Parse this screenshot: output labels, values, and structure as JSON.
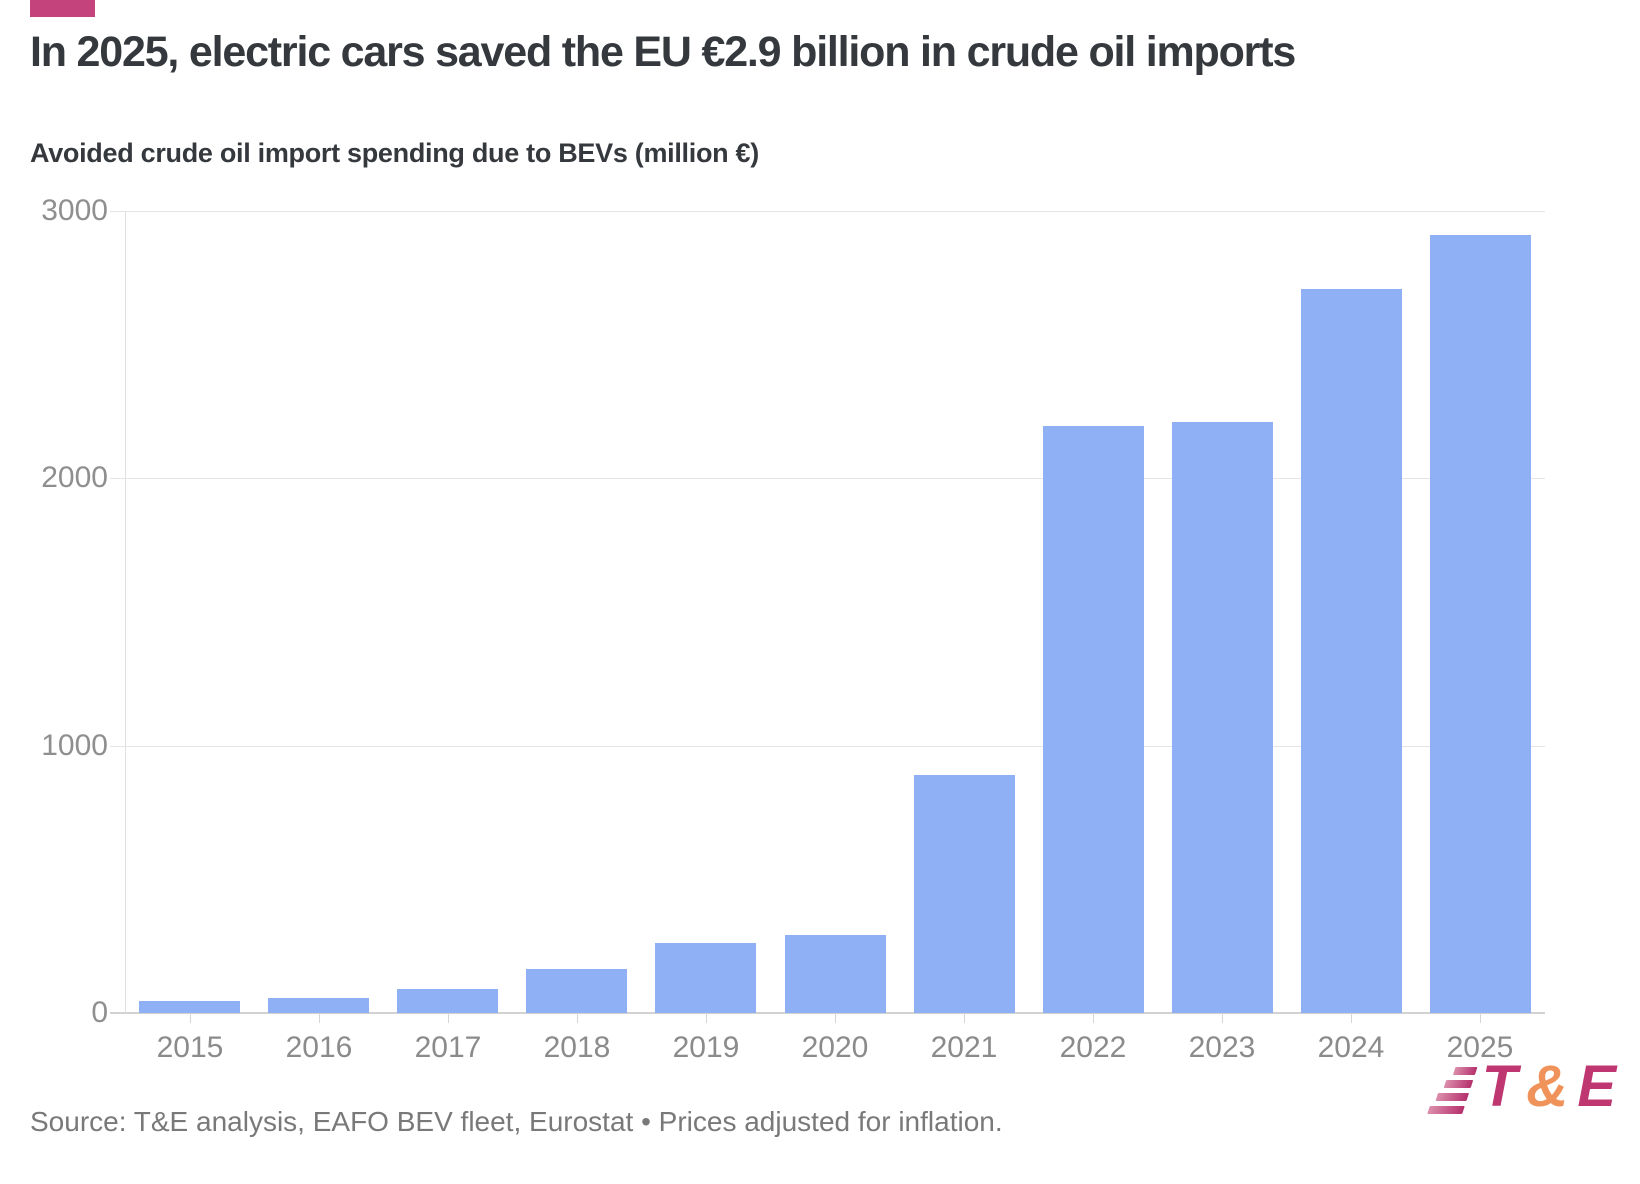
{
  "accent_bar_color": "#c4437c",
  "header": {
    "title": "In 2025, electric cars saved the EU €2.9 billion in crude oil imports"
  },
  "chart_data": {
    "type": "bar",
    "title": "Avoided crude oil import spending due to BEVs (million €)",
    "categories": [
      "2015",
      "2016",
      "2017",
      "2018",
      "2019",
      "2020",
      "2021",
      "2022",
      "2023",
      "2024",
      "2025"
    ],
    "values": [
      45,
      55,
      90,
      165,
      260,
      290,
      890,
      2195,
      2210,
      2710,
      2910
    ],
    "xlabel": "",
    "ylabel": "",
    "ylim": [
      0,
      3000
    ],
    "yticks": [
      0,
      1000,
      2000,
      3000
    ],
    "grid": "horizontal",
    "legend": "none",
    "bar_color": "#8fb0f4"
  },
  "footer": {
    "source": "Source: T&E analysis, EAFO BEV fleet, Eurostat • Prices adjusted for inflation.",
    "logo": {
      "t": "T",
      "amp": "&",
      "e": "E",
      "primary_color": "#bf3770",
      "amp_color": "#f0935a",
      "stripe_gradient_start": "#dc8fac",
      "stripe_gradient_end": "#b5306c"
    }
  }
}
